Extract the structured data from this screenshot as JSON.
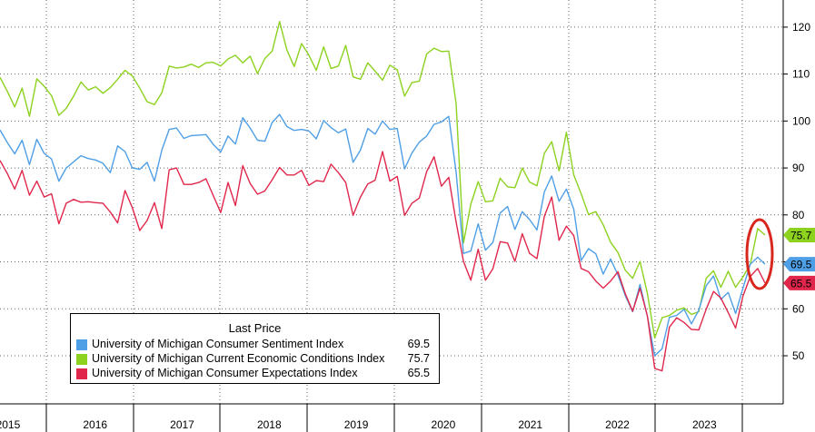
{
  "chart_data": {
    "type": "line",
    "x_labels": [
      "2015",
      "2016",
      "2017",
      "2018",
      "2019",
      "2020",
      "2021",
      "2022",
      "2023"
    ],
    "ylim": [
      40,
      125
    ],
    "y_ticks": [
      50,
      60,
      70,
      80,
      90,
      100,
      110,
      120
    ],
    "grid": true,
    "legend": {
      "title": "Last Price",
      "placement": "bottom-left"
    },
    "series": [
      {
        "name": "University of Michigan Consumer Sentiment Index",
        "color": "#4f9fe6",
        "last": "69.5",
        "values": [
          98.1,
          95.4,
          93.0,
          95.9,
          90.7,
          96.1,
          93.1,
          91.9,
          87.2,
          90.0,
          91.3,
          92.6,
          92.0,
          91.7,
          91.0,
          89.0,
          94.7,
          93.5,
          90.0,
          89.7,
          91.2,
          87.2,
          93.8,
          98.2,
          98.5,
          96.3,
          96.9,
          97.0,
          97.1,
          95.0,
          93.4,
          96.8,
          95.1,
          100.7,
          98.5,
          95.9,
          95.7,
          99.7,
          101.4,
          98.8,
          98.0,
          98.2,
          97.9,
          96.2,
          100.1,
          98.6,
          97.5,
          98.3,
          91.2,
          93.8,
          98.4,
          97.2,
          100.0,
          98.2,
          98.4,
          89.8,
          93.2,
          95.5,
          96.8,
          99.3,
          99.8,
          101.0,
          89.1,
          71.8,
          72.3,
          78.1,
          72.5,
          74.1,
          80.4,
          81.8,
          76.9,
          80.7,
          79.0,
          76.8,
          84.9,
          88.3,
          82.9,
          85.5,
          81.2,
          70.3,
          72.8,
          71.7,
          67.4,
          70.6,
          67.2,
          62.8,
          59.4,
          65.2,
          58.4,
          50.0,
          51.5,
          58.2,
          58.6,
          59.9,
          56.8,
          59.7,
          64.9,
          67.0,
          62.0,
          63.5,
          59.0,
          64.4,
          69.5,
          71.0,
          69.5
        ],
        "label": "University of Michigan Consumer Sentiment Index"
      },
      {
        "name": "University of Michigan Current Economic Conditions Index",
        "color": "#8cd21f",
        "last": "75.7",
        "values": [
          109.3,
          106.3,
          103.0,
          107.0,
          101.0,
          109.0,
          107.4,
          105.4,
          101.2,
          102.7,
          105.3,
          108.3,
          106.6,
          107.3,
          105.9,
          107.1,
          108.9,
          110.8,
          109.6,
          107.0,
          104.1,
          103.5,
          106.0,
          111.7,
          111.3,
          111.5,
          112.1,
          111.4,
          112.4,
          112.5,
          111.7,
          113.2,
          114.0,
          112.4,
          113.8,
          110.1,
          113.3,
          114.9,
          121.2,
          115.1,
          111.6,
          116.5,
          114.0,
          110.8,
          115.8,
          111.2,
          111.7,
          116.1,
          109.4,
          108.9,
          112.4,
          110.6,
          108.7,
          111.9,
          110.9,
          105.3,
          108.2,
          108.5,
          114.3,
          115.5,
          114.8,
          114.9,
          103.7,
          74.0,
          82.3,
          87.1,
          82.8,
          83.0,
          87.8,
          86.0,
          85.8,
          90.0,
          87.0,
          86.2,
          93.1,
          95.6,
          89.4,
          97.6,
          88.5,
          84.5,
          80.1,
          80.7,
          77.9,
          74.2,
          72.0,
          68.2,
          66.5,
          70.1,
          63.3,
          53.8,
          58.1,
          58.6,
          59.7,
          60.2,
          58.8,
          59.4,
          66.5,
          68.1,
          64.6,
          68.0,
          64.6,
          66.8,
          69.5,
          77.1,
          75.7
        ],
        "label": "University of Michigan Current Economic Conditions Index"
      },
      {
        "name": "University of Michigan Consumer Expectations Index",
        "color": "#e0274b",
        "last": "65.5",
        "values": [
          91.6,
          88.8,
          85.5,
          89.5,
          84.2,
          87.2,
          83.8,
          84.5,
          78.1,
          82.5,
          83.3,
          82.7,
          82.8,
          82.6,
          82.5,
          80.6,
          78.3,
          85.2,
          81.5,
          76.7,
          78.8,
          82.6,
          77.1,
          89.6,
          90.0,
          86.5,
          86.5,
          86.9,
          87.7,
          84.1,
          80.5,
          86.9,
          82.0,
          90.5,
          86.7,
          84.4,
          85.1,
          87.5,
          90.1,
          88.5,
          88.5,
          89.5,
          86.3,
          87.3,
          87.1,
          90.8,
          89.0,
          86.9,
          79.9,
          83.8,
          86.6,
          87.4,
          93.5,
          87.2,
          88.2,
          79.9,
          82.5,
          83.6,
          89.2,
          92.4,
          86.1,
          88.0,
          78.5,
          70.1,
          66.1,
          72.7,
          66.1,
          68.5,
          74.3,
          74.0,
          70.1,
          76.0,
          71.8,
          70.7,
          79.7,
          83.8,
          74.6,
          77.6,
          75.6,
          68.6,
          67.9,
          65.9,
          64.4,
          65.9,
          67.9,
          63.2,
          59.5,
          64.4,
          58.5,
          47.3,
          46.8,
          56.1,
          58.1,
          57.1,
          55.6,
          55.5,
          59.9,
          63.7,
          62.3,
          59.2,
          55.9,
          62.7,
          66.9,
          68.6,
          65.5
        ],
        "label": "University of Michigan Consumer Expectations Index"
      }
    ]
  }
}
